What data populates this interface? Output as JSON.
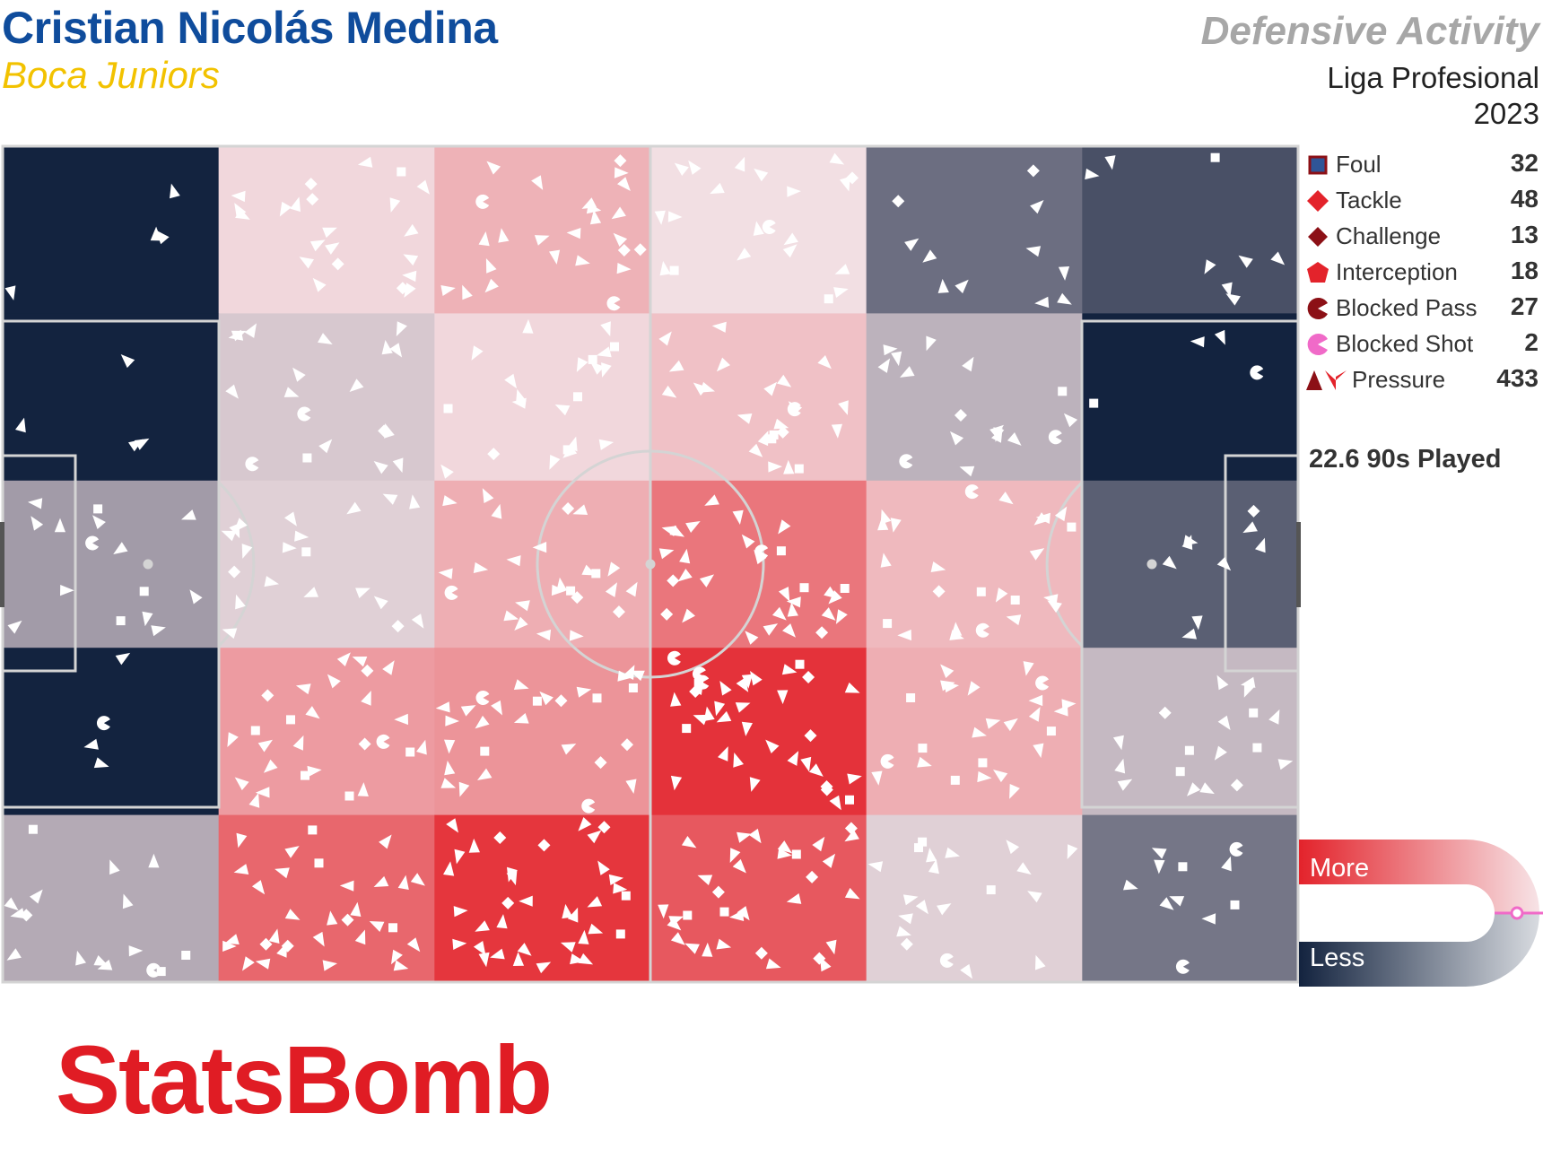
{
  "header": {
    "player": "Cristian Nicolás Medina",
    "team": "Boca Juniors",
    "title": "Defensive Activity",
    "competition": "Liga Profesional",
    "season": "2023"
  },
  "legend": {
    "items": [
      {
        "label": "Foul",
        "count": "32",
        "icon": "square-icon",
        "color": "#2f5597"
      },
      {
        "label": "Tackle",
        "count": "48",
        "icon": "diamond-icon",
        "color": "#e3232b"
      },
      {
        "label": "Challenge",
        "count": "13",
        "icon": "diamond-icon",
        "color": "#8c1016"
      },
      {
        "label": "Interception",
        "count": "18",
        "icon": "pentagon-icon",
        "color": "#e3232b"
      },
      {
        "label": "Blocked Pass",
        "count": "27",
        "icon": "pacman-icon",
        "color": "#8c1016"
      },
      {
        "label": "Blocked Shot",
        "count": "2",
        "icon": "pacman-icon",
        "color": "#f06ac8"
      },
      {
        "label": "Pressure",
        "count": "433",
        "icon": "triangle-icon",
        "color": "#8c1016"
      }
    ],
    "nineties": "22.6 90s Played"
  },
  "scale": {
    "more": "More",
    "less": "Less",
    "more_color": "#e3232b",
    "less_color": "#13233f"
  },
  "brand": "StatsBomb",
  "chart_data": {
    "type": "heatmap",
    "description_axis": "pitch zones, 6 columns (own goal left to opponent goal right) x 5 rows (top to bottom)",
    "scale_labels": [
      "More",
      "Less"
    ],
    "zone_intensity": [
      [
        0.0,
        0.52,
        0.62,
        0.5,
        0.2,
        0.12
      ],
      [
        0.0,
        0.44,
        0.52,
        0.58,
        0.38,
        0.0
      ],
      [
        0.32,
        0.46,
        0.63,
        0.78,
        0.6,
        0.16
      ],
      [
        0.0,
        0.68,
        0.7,
        0.96,
        0.63,
        0.4
      ],
      [
        0.36,
        0.82,
        0.95,
        0.86,
        0.46,
        0.22
      ]
    ],
    "palette": {
      "high": "#e3232b",
      "mid": "#f2dfe3",
      "low": "#13233f"
    },
    "events": {
      "Foul": 32,
      "Tackle": 48,
      "Challenge": 13,
      "Interception": 18,
      "Blocked Pass": 27,
      "Blocked Shot": 2,
      "Pressure": 433
    }
  }
}
